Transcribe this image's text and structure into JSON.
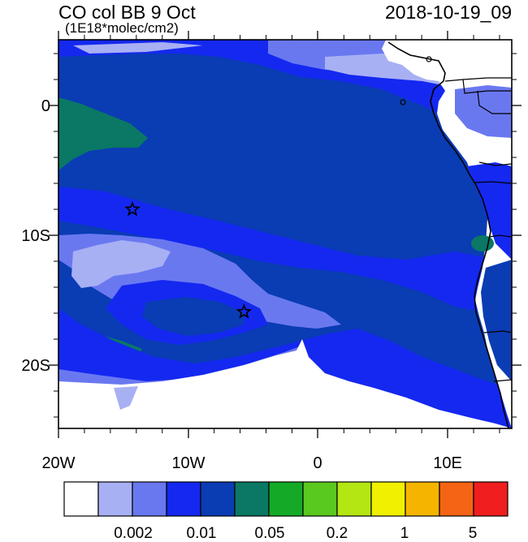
{
  "header": {
    "title": "CO col BB 9 Oct",
    "subtitle": "(1E18*molec/cm2)",
    "timestamp": "2018-10-19_09"
  },
  "axes": {
    "lon_ticks": [
      "20W",
      "10W",
      "0",
      "10E"
    ],
    "lat_ticks": [
      "0",
      "10S",
      "20S"
    ]
  },
  "colorbar": {
    "colors": [
      "#ffffff",
      "#a8b0f4",
      "#6a78f0",
      "#1428f0",
      "#0a3cb4",
      "#0a7864",
      "#14aa28",
      "#5ac81e",
      "#b4e614",
      "#f0f000",
      "#f5b400",
      "#f56414",
      "#f01e1e"
    ],
    "labels": [
      "0.002",
      "0.01",
      "0.05",
      "0.2",
      "1",
      "5"
    ]
  },
  "markers": [
    {
      "name": "site-star-1",
      "lon": -14.3,
      "lat": -8.0
    },
    {
      "name": "site-star-2",
      "lon": -5.7,
      "lat": -15.9
    }
  ]
}
